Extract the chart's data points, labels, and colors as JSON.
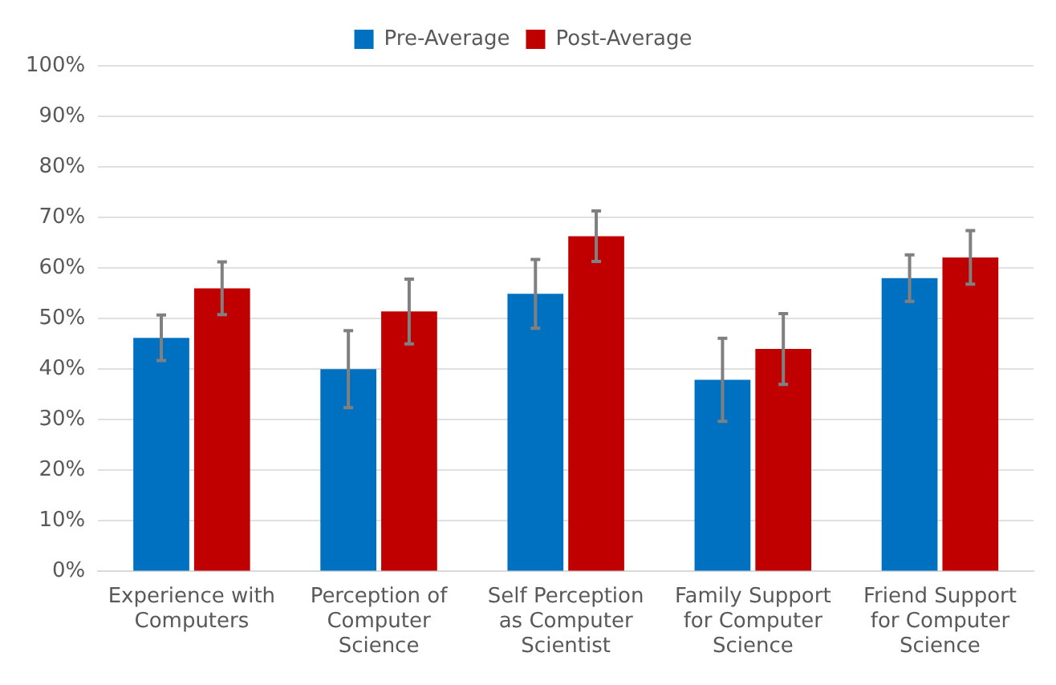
{
  "chart_data": {
    "type": "bar",
    "categories": [
      "Experience with Computers",
      "Perception of Computer Science",
      "Self Perception as Computer Scientist",
      "Family Support for Computer Science",
      "Friend Support for Computer Science"
    ],
    "series": [
      {
        "name": "Pre-Average",
        "color": "#0070c0",
        "values": [
          46.2,
          40.0,
          54.9,
          37.9,
          58.0
        ],
        "errors": [
          4.5,
          7.6,
          6.8,
          8.2,
          4.6
        ]
      },
      {
        "name": "Post-Average",
        "color": "#c00000",
        "values": [
          56.0,
          51.4,
          66.3,
          44.0,
          62.1
        ],
        "errors": [
          5.2,
          6.4,
          5.0,
          7.0,
          5.3
        ]
      }
    ],
    "ylim": [
      0,
      100
    ],
    "yticks": [
      {
        "value": 0,
        "label": "0%"
      },
      {
        "value": 10,
        "label": "10%"
      },
      {
        "value": 20,
        "label": "20%"
      },
      {
        "value": 30,
        "label": "30%"
      },
      {
        "value": 40,
        "label": "40%"
      },
      {
        "value": 50,
        "label": "50%"
      },
      {
        "value": 60,
        "label": "60%"
      },
      {
        "value": 70,
        "label": "70%"
      },
      {
        "value": 80,
        "label": "80%"
      },
      {
        "value": 90,
        "label": "90%"
      },
      {
        "value": 100,
        "label": "100%"
      }
    ],
    "grid": "y",
    "legend": "top"
  }
}
